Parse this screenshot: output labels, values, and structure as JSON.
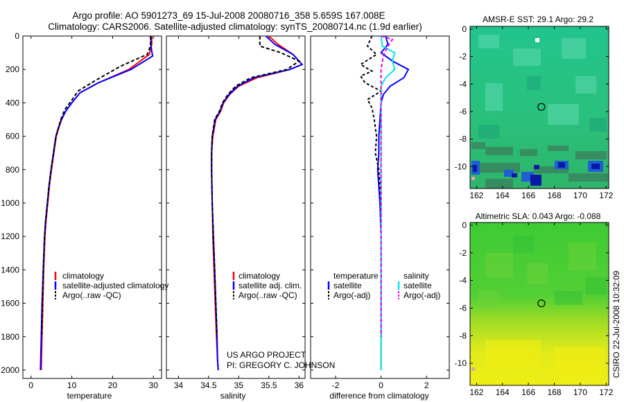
{
  "title_line1": "Argo profile: AO 5901273_69 15-Jul-2008 20080716_358 5.659S 167.008E",
  "title_line2": "Climatology: CARS2006. Satellite-adjusted climatology: synTS_20080714.nc (1.9d earlier)",
  "credit_line1": "US ARGO PROJECT",
  "credit_line2": "PI: GREGORY C. JOHNSON",
  "stamp": "CSIRO 22-Jul-2008 10:32:09",
  "chart_data": [
    {
      "type": "line",
      "id": "temperature",
      "xlabel": "temperature",
      "xlim": [
        -2,
        32
      ],
      "ylim": [
        2050,
        0
      ],
      "xticks": [
        0,
        10,
        20,
        30
      ],
      "yticks": [
        0,
        200,
        400,
        600,
        800,
        1000,
        1200,
        1400,
        1600,
        1800,
        2000
      ],
      "legend": [
        "climatology",
        "satellite-adjusted climatology",
        "Argo(..raw -QC)"
      ],
      "series": [
        {
          "name": "climatology",
          "color": "#ff0000",
          "dash": "",
          "x": [
            29.6,
            29.6,
            29.0,
            24.0,
            16.5,
            12.0,
            10.0,
            8.5,
            7.5,
            6.8,
            6.2,
            5.6,
            5.0,
            4.5,
            4.1,
            3.7,
            3.4,
            3.1,
            2.9,
            2.7,
            2.5
          ],
          "y": [
            0,
            50,
            110,
            200,
            280,
            340,
            400,
            450,
            500,
            550,
            600,
            700,
            800,
            900,
            1000,
            1100,
            1200,
            1400,
            1600,
            1800,
            2000
          ]
        },
        {
          "name": "satellite-adjusted climatology",
          "color": "#0000ff",
          "dash": "",
          "x": [
            29.4,
            29.4,
            29.8,
            24.5,
            16.5,
            12.0,
            10.0,
            8.5,
            7.4,
            6.7,
            6.1,
            5.5,
            4.9,
            4.4,
            4.0,
            3.6,
            3.3,
            3.0,
            2.7,
            2.5,
            2.3
          ],
          "y": [
            0,
            60,
            120,
            200,
            280,
            340,
            400,
            450,
            500,
            550,
            600,
            700,
            800,
            900,
            1000,
            1100,
            1200,
            1400,
            1600,
            1800,
            2000
          ]
        },
        {
          "name": "Argo(..raw -QC)",
          "color": "#000000",
          "dash": "5,3",
          "x": [
            29.3,
            29.3,
            28.5,
            22.0,
            15.5,
            11.5,
            9.8,
            8.3,
            7.3,
            6.7,
            6.1,
            5.5,
            4.9,
            4.4,
            4.0,
            3.6,
            3.3,
            3.0,
            2.8,
            2.6
          ],
          "y": [
            0,
            60,
            110,
            180,
            270,
            330,
            390,
            440,
            500,
            550,
            600,
            700,
            800,
            900,
            1000,
            1100,
            1200,
            1400,
            1600,
            1800
          ]
        }
      ]
    },
    {
      "type": "line",
      "id": "salinity",
      "xlabel": "salinity",
      "xlim": [
        33.8,
        36.1
      ],
      "ylim": [
        2050,
        0
      ],
      "xticks": [
        34,
        34.5,
        35,
        35.5,
        36
      ],
      "xticklabels": [
        "34",
        "34.5",
        "35",
        "35.5",
        "36"
      ],
      "legend": [
        "climatology",
        "satellite adj. clim.",
        "Argo(..raw -QC)"
      ],
      "series": [
        {
          "name": "climatology",
          "color": "#ff0000",
          "dash": "",
          "x": [
            35.5,
            35.65,
            35.9,
            36.05,
            35.85,
            35.3,
            35.0,
            34.85,
            34.75,
            34.7,
            34.62,
            34.57,
            34.55,
            34.55,
            34.56,
            34.57,
            34.59,
            34.61,
            34.63,
            34.65,
            34.66
          ],
          "y": [
            0,
            50,
            110,
            170,
            200,
            250,
            300,
            350,
            400,
            450,
            500,
            600,
            700,
            800,
            1000,
            1200,
            1400,
            1600,
            1800,
            1950,
            2000
          ]
        },
        {
          "name": "satellite adj. clim.",
          "color": "#0000ff",
          "dash": "",
          "x": [
            35.45,
            35.6,
            35.9,
            36.05,
            35.85,
            35.25,
            34.98,
            34.84,
            34.74,
            34.69,
            34.61,
            34.56,
            34.55,
            34.55,
            34.56,
            34.58,
            34.6,
            34.62,
            34.64,
            34.65,
            34.66
          ],
          "y": [
            0,
            50,
            110,
            170,
            200,
            250,
            300,
            350,
            400,
            450,
            500,
            600,
            700,
            800,
            1000,
            1200,
            1400,
            1600,
            1800,
            1950,
            2000
          ]
        },
        {
          "name": "Argo(..raw -QC)",
          "color": "#000000",
          "dash": "5,3",
          "x": [
            35.35,
            35.35,
            35.7,
            36.0,
            35.8,
            35.2,
            34.95,
            34.82,
            34.73,
            34.68,
            34.6,
            34.56,
            34.55,
            34.55,
            34.56,
            34.58,
            34.6,
            34.62,
            34.64
          ],
          "y": [
            0,
            60,
            100,
            150,
            200,
            250,
            300,
            350,
            400,
            450,
            500,
            600,
            700,
            800,
            1000,
            1200,
            1400,
            1600,
            1800
          ]
        }
      ]
    },
    {
      "type": "line",
      "id": "difference",
      "xlabel": "difference from climatology",
      "xlim": [
        -3.1,
        3.0
      ],
      "ylim": [
        2050,
        0
      ],
      "xticks": [
        -2,
        0,
        2
      ],
      "legend_groups": [
        {
          "heading": "temperature",
          "items": [
            "satellite",
            "Argo(-adj)"
          ]
        },
        {
          "heading": "salinity",
          "items": [
            "satellite",
            "Argo(-adj)"
          ]
        }
      ],
      "series": [
        {
          "name": "temperature satellite",
          "color": "#0000ff",
          "dash": "",
          "x": [
            0.2,
            0.3,
            0.0,
            0.5,
            1.2,
            1.0,
            0.4,
            0.1,
            0.0,
            -0.05,
            -0.1,
            -0.1,
            -0.15,
            -0.1,
            -0.05,
            0.0,
            0.0,
            0.0,
            0.0
          ],
          "y": [
            0,
            50,
            100,
            150,
            200,
            250,
            300,
            350,
            400,
            500,
            600,
            700,
            800,
            900,
            1000,
            1200,
            1400,
            1700,
            2000
          ]
        },
        {
          "name": "temperature Argo(-adj)",
          "color": "#000000",
          "dash": "4,3",
          "x": [
            -0.4,
            -0.6,
            -0.2,
            -0.9,
            -0.4,
            -0.9,
            -0.7,
            0.0,
            -0.6,
            -0.4,
            -0.3,
            -0.2,
            -0.25,
            -0.1,
            -0.05,
            0.0,
            0.0,
            0.0
          ],
          "y": [
            0,
            60,
            110,
            170,
            210,
            240,
            280,
            330,
            380,
            430,
            500,
            600,
            700,
            800,
            900,
            1000,
            1300,
            1800
          ]
        },
        {
          "name": "salinity satellite",
          "color": "#00e5e5",
          "dash": "",
          "x": [
            0.0,
            0.05,
            0.6,
            0.5,
            0.6,
            0.2,
            0.0,
            0.0,
            0.0,
            0.0,
            0.0,
            0.0
          ],
          "y": [
            0,
            60,
            100,
            150,
            200,
            250,
            300,
            400,
            600,
            1000,
            1500,
            2000
          ]
        },
        {
          "name": "salinity Argo(-adj)",
          "color": "#e600e6",
          "dash": "5,3",
          "x": [
            0.0,
            0.5,
            0.3,
            0.1,
            0.0,
            0.0,
            0.0,
            0.0,
            0.0
          ],
          "y": [
            0,
            20,
            60,
            120,
            200,
            400,
            800,
            1200,
            1800
          ]
        }
      ]
    },
    {
      "type": "heatmap",
      "id": "sst_map",
      "title": "AMSR-E SST: 29.1 Argo: 29.2",
      "xlim": [
        161.5,
        172.2
      ],
      "ylim": [
        -11.6,
        0.2
      ],
      "xticks": [
        162,
        164,
        166,
        168,
        170,
        172
      ],
      "yticks": [
        0,
        -2,
        -4,
        -6,
        -8,
        -10
      ],
      "marker": {
        "x": 167.0,
        "y": -5.66
      }
    },
    {
      "type": "heatmap",
      "id": "sla_map",
      "title": "Altimetric SLA: 0.043  Argo: -0.088",
      "xlim": [
        161.5,
        172.2
      ],
      "ylim": [
        -11.6,
        0.2
      ],
      "xticks": [
        162,
        164,
        166,
        168,
        170,
        172
      ],
      "yticks": [
        0,
        -2,
        -4,
        -6,
        -8,
        -10
      ],
      "marker": {
        "x": 167.0,
        "y": -5.66
      }
    }
  ]
}
